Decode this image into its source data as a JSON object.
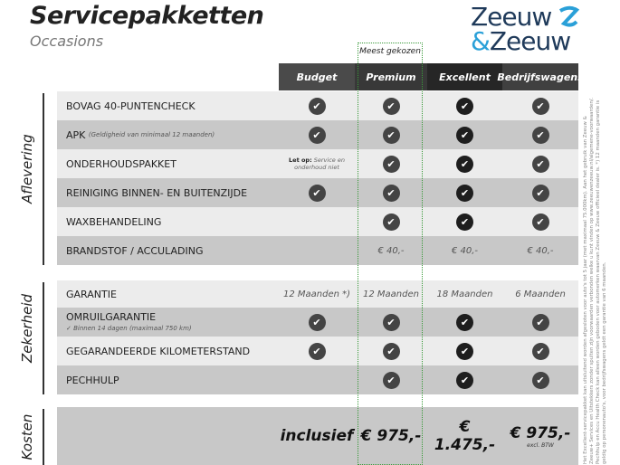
{
  "title": "Servicepakketten",
  "subtitle": "Occasions",
  "logo": {
    "line1": "Zeeuw",
    "line2_amp": "&",
    "line2": "Zeeuw",
    "brand_color": "#1f3a5a",
    "accent": "#2aa0d8"
  },
  "popular_label": "Meest gekozen",
  "columns": [
    "Budget",
    "Premium",
    "Excellent",
    "Bedrijfswagens"
  ],
  "groups": {
    "aflevering": "Aflevering",
    "zekerheid": "Zekerheid",
    "kosten": "Kosten"
  },
  "rows": {
    "r0": {
      "label": "BOVAG 40-PUNTENCHECK",
      "cells": [
        "check",
        "check",
        "check",
        "check"
      ]
    },
    "r1": {
      "label": "APK",
      "note": "(Geldigheid van minimaal 12 maanden)",
      "cells": [
        "check",
        "check",
        "check",
        "check"
      ]
    },
    "r2": {
      "label": "ONDERHOUDSPAKKET",
      "budget_note_bold": "Let op:",
      "budget_note": "Service en onderhoud niet",
      "cells": [
        "note",
        "check",
        "check",
        "check"
      ]
    },
    "r3": {
      "label": "REINIGING BINNEN- EN BUITENZIJDE",
      "cells": [
        "check",
        "check",
        "check",
        "check"
      ]
    },
    "r4": {
      "label": "WAXBEHANDELING",
      "cells": [
        "",
        "check",
        "check",
        "check"
      ]
    },
    "r5": {
      "label": "BRANDSTOF / ACCULADING",
      "cells": [
        "",
        "€ 40,-",
        "€ 40,-",
        "€ 40,-"
      ]
    },
    "r6": {
      "label": "GARANTIE",
      "cells": [
        "12 Maanden *)",
        "12 Maanden",
        "18 Maanden",
        "6 Maanden"
      ]
    },
    "r7": {
      "label": "OMRUILGARANTIE",
      "sub": "✓  Binnen 14 dagen (maximaal 750 km)",
      "cells": [
        "check",
        "check",
        "check",
        "check"
      ]
    },
    "r8": {
      "label": "GEGARANDEERDE KILOMETERSTAND",
      "cells": [
        "check",
        "check",
        "check",
        "check"
      ]
    },
    "r9": {
      "label": "PECHHULP",
      "cells": [
        "",
        "check",
        "check",
        "check"
      ]
    }
  },
  "check_glyph": "✔",
  "costs": {
    "budget": "inclusief",
    "premium": "€ 975,-",
    "excellent": "€ 1.475,-",
    "bedrijfswagens": "€ 975,-",
    "bedrijfswagens_note": "excl. BTW"
  },
  "disclaimer": "Het Excellent-servicepakket kan uitsluitend worden afgesloten voor auto's tot 5 jaar (met maximaal 75.000km). Aan het gebruik van Zeeuw & Zeeuw+ Services en Uitstekkers zonder spulten zijn voorwaarden verbonden welke u kunt vinden op www.zeeuwenzeeuw.nl/algemene-voorwaarden/. Pechhulp en Accu Health Check kan alleen worden geboden voor automerken waarvan Zeeuw & Zeeuw officieel dealer is. *) 12 maanden garantie is geldig op personenauto's, voor bedrijfswagens geldt een garantie van 6 maanden."
}
